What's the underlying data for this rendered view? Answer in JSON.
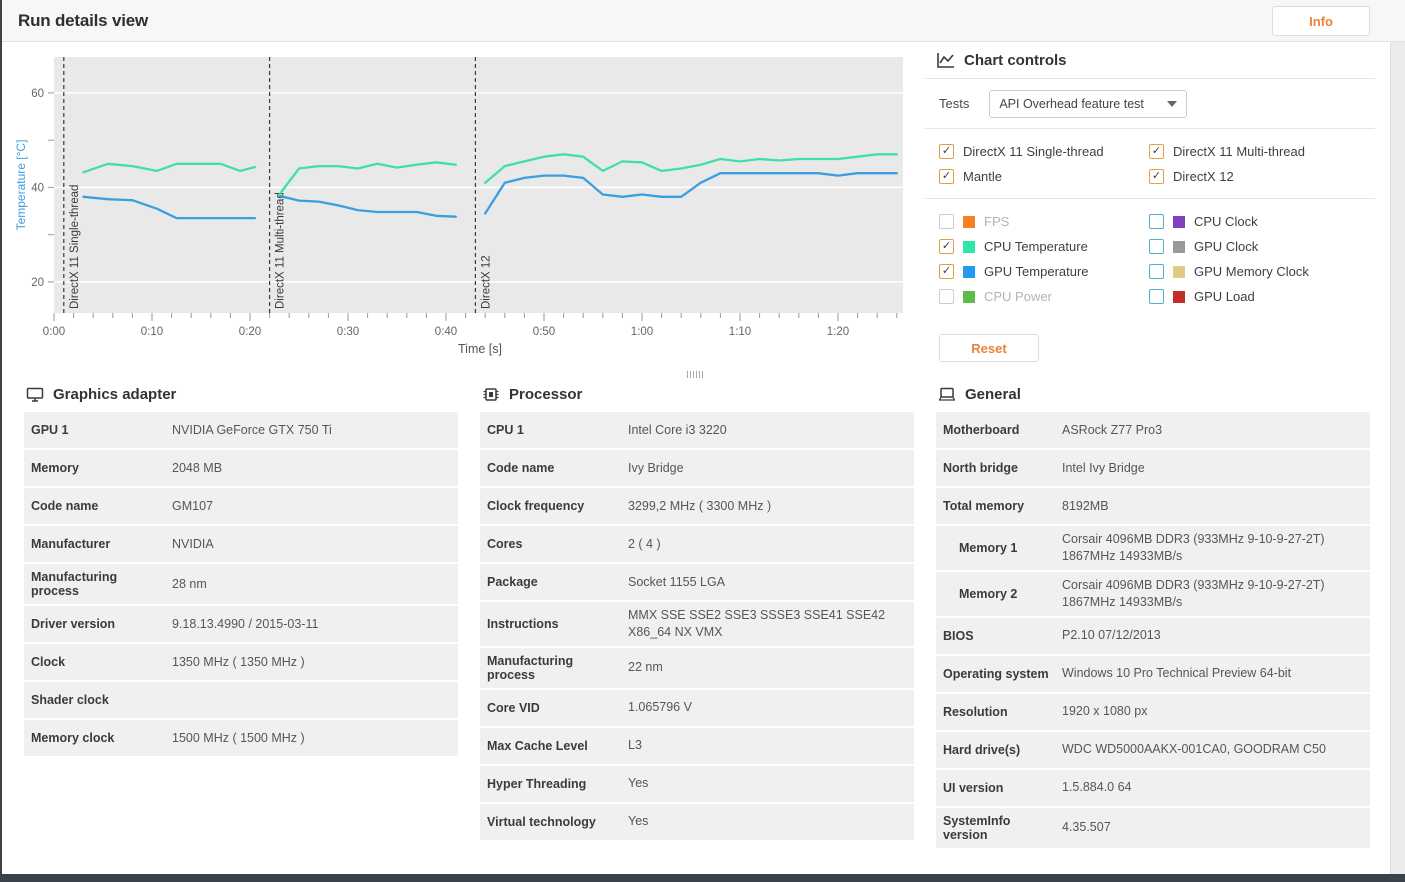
{
  "header": {
    "title": "Run details view",
    "info_button": "Info"
  },
  "colors": {
    "accent_orange": "#e8823c",
    "dark_bar": "#3b424b",
    "plot_background": "#e9e9e9",
    "checkbox_checked_border": "#e0a04a",
    "checkbox_available_border": "#54aecb",
    "y_axis_label_blue": "#3f9fe0"
  },
  "chart_controls": {
    "title": "Chart controls",
    "icon": "line-chart-icon",
    "tests_label": "Tests",
    "tests_value": "API Overhead feature test",
    "reset_button": "Reset",
    "test_checkboxes": [
      {
        "label": "DirectX 11 Single-thread",
        "checked": true
      },
      {
        "label": "DirectX 11 Multi-thread",
        "checked": true
      },
      {
        "label": "Mantle",
        "checked": true
      },
      {
        "label": "DirectX 12",
        "checked": true
      }
    ],
    "series_checkboxes_left": [
      {
        "label": "FPS",
        "color": "#f5821f",
        "checked": false,
        "enabled": false
      },
      {
        "label": "CPU Temperature",
        "color": "#2ee6a8",
        "checked": true,
        "enabled": true
      },
      {
        "label": "GPU Temperature",
        "color": "#2499f0",
        "checked": true,
        "enabled": true
      },
      {
        "label": "CPU Power",
        "color": "#5dbb46",
        "checked": false,
        "enabled": false
      }
    ],
    "series_checkboxes_right": [
      {
        "label": "CPU Clock",
        "color": "#8040bf",
        "checked": false,
        "enabled": true
      },
      {
        "label": "GPU Clock",
        "color": "#999999",
        "checked": false,
        "enabled": true
      },
      {
        "label": "GPU Memory Clock",
        "color": "#e2c984",
        "checked": false,
        "enabled": true
      },
      {
        "label": "GPU Load",
        "color": "#c03028",
        "checked": false,
        "enabled": true
      }
    ]
  },
  "chart_data": {
    "type": "line",
    "xlabel": "Time [s]",
    "ylabel": "Temperature [°C]",
    "ylim": [
      13,
      68
    ],
    "y_tick_labels": [
      20,
      40,
      60
    ],
    "y_minor_ticks": [
      20,
      30,
      40,
      50,
      60
    ],
    "x_major_seconds": [
      0,
      10,
      20,
      30,
      40,
      50,
      60,
      70,
      80
    ],
    "x_tick_labels": [
      "0:00",
      "0:10",
      "0:20",
      "0:30",
      "0:40",
      "0:50",
      "1:00",
      "1:10",
      "1:20"
    ],
    "x_minor_step_seconds": 2,
    "x_max_seconds": 86.6,
    "grid": "horizontal-major",
    "sections": [
      {
        "label": "DirectX 11 Single-thread",
        "marker_t": 1,
        "series": [
          {
            "name": "CPU Temperature",
            "color": "#3fe0a4",
            "t": [
              3,
              5.5,
              8,
              10.5,
              12.5,
              15,
              17,
              19,
              20.5
            ],
            "values": [
              43.2,
              45,
              44.5,
              43.5,
              45,
              45,
              45,
              43.5,
              44.3
            ]
          },
          {
            "name": "GPU Temperature",
            "color": "#3a9fe0",
            "t": [
              3,
              5.5,
              8,
              10.5,
              12.5,
              15,
              17,
              19,
              20.5
            ],
            "values": [
              38,
              37.5,
              37.3,
              35.5,
              33.5,
              33.5,
              33.5,
              33.5,
              33.5
            ]
          }
        ]
      },
      {
        "label": "DirectX 11 Multi-thread",
        "marker_t": 22,
        "series": [
          {
            "name": "CPU Temperature",
            "color": "#3fe0a4",
            "t": [
              23,
              25,
              27,
              29,
              31,
              33,
              35,
              37,
              39,
              41
            ],
            "values": [
              38.5,
              44,
              44.5,
              44.5,
              44,
              45,
              44.2,
              44.8,
              45.3,
              44.8
            ]
          },
          {
            "name": "GPU Temperature",
            "color": "#3a9fe0",
            "t": [
              23,
              25,
              27,
              29,
              31,
              33,
              35,
              37,
              39,
              41
            ],
            "values": [
              38.2,
              37.2,
              37,
              36.2,
              35.2,
              34.8,
              34.8,
              34.8,
              34,
              33.8
            ]
          }
        ]
      },
      {
        "label": "DirectX 12",
        "marker_t": 43,
        "series": [
          {
            "name": "CPU Temperature",
            "color": "#3fe0a4",
            "t": [
              44,
              46,
              48,
              50,
              52,
              54,
              56,
              58,
              60,
              62,
              64,
              66,
              68,
              70,
              72,
              74,
              76,
              78,
              80,
              82,
              84,
              86
            ],
            "values": [
              41,
              44.5,
              45.5,
              46.5,
              47,
              46.5,
              43.5,
              45.5,
              45.3,
              43.5,
              44,
              44.8,
              46,
              45.5,
              46,
              45.7,
              46,
              46,
              46,
              46.5,
              47,
              47
            ]
          },
          {
            "name": "GPU Temperature",
            "color": "#3a9fe0",
            "t": [
              44,
              46,
              48,
              50,
              52,
              54,
              56,
              58,
              60,
              62,
              64,
              66,
              68,
              70,
              72,
              74,
              76,
              78,
              80,
              82,
              84,
              86
            ],
            "values": [
              34.5,
              41,
              42,
              42.5,
              42.5,
              42,
              38.5,
              38,
              38.5,
              38,
              38,
              41,
              43,
              43,
              43,
              43,
              43,
              43,
              42.5,
              43,
              43,
              43
            ]
          }
        ]
      }
    ]
  },
  "panels": [
    {
      "title": "Graphics adapter",
      "icon": "monitor-icon",
      "narrow_labels": false,
      "rows": [
        {
          "label": "GPU 1",
          "value": "NVIDIA GeForce GTX 750 Ti"
        },
        {
          "label": "Memory",
          "value": "2048 MB"
        },
        {
          "label": "Code name",
          "value": "GM107"
        },
        {
          "label": "Manufacturer",
          "value": "NVIDIA"
        },
        {
          "label": "Manufacturing process",
          "value": "28 nm"
        },
        {
          "label": "Driver version",
          "value": "9.18.13.4990 / 2015-03-11"
        },
        {
          "label": "Clock",
          "value": "1350 MHz ( 1350 MHz )"
        },
        {
          "label": "Shader clock",
          "value": ""
        },
        {
          "label": "Memory clock",
          "value": "1500 MHz ( 1500 MHz )"
        }
      ]
    },
    {
      "title": "Processor",
      "icon": "chip-icon",
      "narrow_labels": false,
      "rows": [
        {
          "label": "CPU 1",
          "value": "Intel Core i3 3220"
        },
        {
          "label": "Code name",
          "value": "Ivy Bridge"
        },
        {
          "label": "Clock frequency",
          "value": "3299,2 MHz ( 3300 MHz )"
        },
        {
          "label": "Cores",
          "value": "2 ( 4 )"
        },
        {
          "label": "Package",
          "value": "Socket 1155 LGA"
        },
        {
          "label": "Instructions",
          "value": "MMX SSE SSE2 SSE3 SSSE3 SSE41 SSE42 X86_64 NX VMX"
        },
        {
          "label": "Manufacturing process",
          "value": "22 nm"
        },
        {
          "label": "Core VID",
          "value": "1.065796 V"
        },
        {
          "label": "Max Cache Level",
          "value": "L3"
        },
        {
          "label": "Hyper Threading",
          "value": "Yes"
        },
        {
          "label": "Virtual technology",
          "value": "Yes"
        }
      ]
    },
    {
      "title": "General",
      "icon": "laptop-icon",
      "narrow_labels": true,
      "rows": [
        {
          "label": "Motherboard",
          "value": "ASRock Z77 Pro3"
        },
        {
          "label": "North bridge",
          "value": "Intel Ivy Bridge"
        },
        {
          "label": "Total memory",
          "value": "8192MB"
        },
        {
          "label": "Memory 1",
          "value": "Corsair 4096MB  DDR3 (933MHz 9-10-9-27-2T) 1867MHz 14933MB/s",
          "indent": true
        },
        {
          "label": "Memory 2",
          "value": "Corsair 4096MB  DDR3 (933MHz 9-10-9-27-2T) 1867MHz 14933MB/s",
          "indent": true
        },
        {
          "label": "BIOS",
          "value": "P2.10 07/12/2013"
        },
        {
          "label": "Operating system",
          "value": "Windows 10 Pro Technical Preview 64-bit"
        },
        {
          "label": "Resolution",
          "value": "1920 x 1080 px"
        },
        {
          "label": "Hard drive(s)",
          "value": "WDC WD5000AAKX-001CA0, GOODRAM C50"
        },
        {
          "label": "UI version",
          "value": "1.5.884.0 64"
        },
        {
          "label": "SystemInfo version",
          "value": "4.35.507"
        }
      ]
    }
  ]
}
